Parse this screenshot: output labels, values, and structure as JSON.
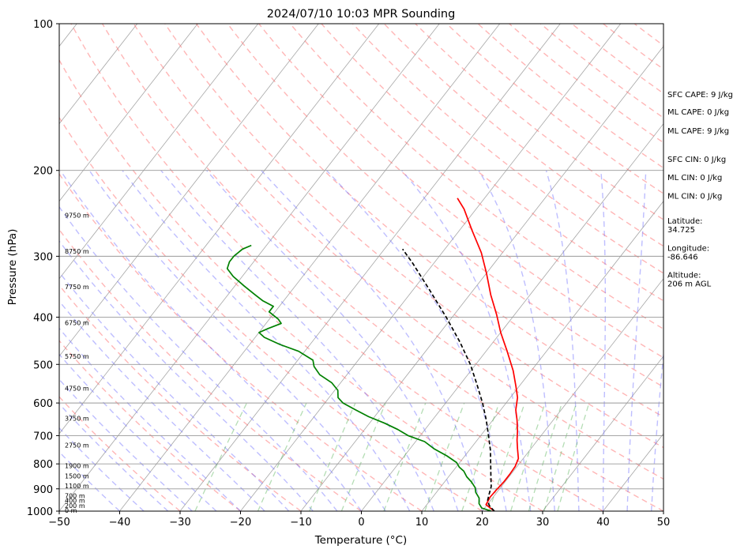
{
  "chart_data": {
    "type": "line",
    "title": "2024/07/10 10:03 MPR Sounding",
    "xlabel": "Temperature (°C)",
    "ylabel": "Pressure (hPa)",
    "xlim": [
      -50,
      50
    ],
    "ylim": [
      1000,
      100
    ],
    "y_scale": "log",
    "x_ticks": [
      -50,
      -40,
      -30,
      -20,
      -10,
      0,
      10,
      20,
      30,
      40,
      50
    ],
    "x_tick_labels": [
      "−50",
      "−40",
      "−30",
      "−20",
      "−10",
      "0",
      "10",
      "20",
      "30",
      "40",
      "50"
    ],
    "y_ticks": [
      1000,
      900,
      800,
      700,
      600,
      500,
      400,
      300,
      200,
      100
    ],
    "y_tick_labels": [
      "1000",
      "900",
      "800",
      "700",
      "600",
      "500",
      "400",
      "300",
      "200",
      "100"
    ],
    "grid": true,
    "height_labels": [
      {
        "p": 1000,
        "text": "0 m"
      },
      {
        "p": 978,
        "text": "200 m"
      },
      {
        "p": 955,
        "text": "400 m"
      },
      {
        "p": 933,
        "text": "700 m"
      },
      {
        "p": 890,
        "text": "1100 m"
      },
      {
        "p": 850,
        "text": "1500 m"
      },
      {
        "p": 810,
        "text": "1900 m"
      },
      {
        "p": 735,
        "text": "2750 m"
      },
      {
        "p": 648,
        "text": "3750 m"
      },
      {
        "p": 562,
        "text": "4750 m"
      },
      {
        "p": 483,
        "text": "5750 m"
      },
      {
        "p": 412,
        "text": "6750 m"
      },
      {
        "p": 348,
        "text": "7750 m"
      },
      {
        "p": 294,
        "text": "8750 m"
      },
      {
        "p": 248,
        "text": "9750 m"
      }
    ],
    "stats": [
      {
        "text": "SFC CAPE: 9 J/kg",
        "p": 140
      },
      {
        "text": "ML CAPE: 0 J/kg",
        "p": 152
      },
      {
        "text": "ML CAPE: 9 J/kg",
        "p": 166
      },
      {
        "text": "SFC CIN: 0 J/kg",
        "p": 190
      },
      {
        "text": "ML CIN: 0 J/kg",
        "p": 207
      },
      {
        "text": "ML CIN: 0 J/kg",
        "p": 226
      },
      {
        "text": "Latitude:",
        "p": 254
      },
      {
        "text": "34.725",
        "p": 265
      },
      {
        "text": "Longitude:",
        "p": 289
      },
      {
        "text": "-86.646",
        "p": 301
      },
      {
        "text": "Altitude:",
        "p": 328
      },
      {
        "text": "206 m AGL",
        "p": 342
      }
    ],
    "series": [
      {
        "name": "",
        "color": "#ff0000",
        "style": "solid",
        "points": [
          [
            22.0,
            1000
          ],
          [
            19.8,
            970
          ],
          [
            19.5,
            935
          ],
          [
            19.6,
            905
          ],
          [
            19.8,
            870
          ],
          [
            19.8,
            840
          ],
          [
            19.7,
            810
          ],
          [
            19.2,
            780
          ],
          [
            17.8,
            745
          ],
          [
            16.6,
            715
          ],
          [
            15.5,
            685
          ],
          [
            14.0,
            650
          ],
          [
            12.5,
            620
          ],
          [
            11.2,
            585
          ],
          [
            9.5,
            555
          ],
          [
            7.0,
            515
          ],
          [
            3.5,
            470
          ],
          [
            0.0,
            430
          ],
          [
            -3.0,
            395
          ],
          [
            -6.5,
            360
          ],
          [
            -10.0,
            325
          ],
          [
            -13.5,
            295
          ],
          [
            -18.0,
            265
          ],
          [
            -22.0,
            240
          ],
          [
            -24.5,
            228
          ]
        ]
      },
      {
        "name": "",
        "color": "#008000",
        "style": "solid",
        "points": [
          [
            21.5,
            1000
          ],
          [
            19.5,
            985
          ],
          [
            18.5,
            965
          ],
          [
            17.8,
            940
          ],
          [
            16.5,
            915
          ],
          [
            15.8,
            895
          ],
          [
            14.5,
            872
          ],
          [
            13.0,
            850
          ],
          [
            11.8,
            828
          ],
          [
            10.5,
            812
          ],
          [
            9.5,
            795
          ],
          [
            7.0,
            770
          ],
          [
            4.0,
            745
          ],
          [
            1.5,
            720
          ],
          [
            -2.0,
            700
          ],
          [
            -4.5,
            680
          ],
          [
            -7.5,
            660
          ],
          [
            -11.0,
            640
          ],
          [
            -14.0,
            620
          ],
          [
            -17.0,
            600
          ],
          [
            -18.5,
            585
          ],
          [
            -19.5,
            565
          ],
          [
            -21.5,
            545
          ],
          [
            -24.5,
            525
          ],
          [
            -26.5,
            505
          ],
          [
            -27.5,
            490
          ],
          [
            -31.0,
            470
          ],
          [
            -35.0,
            455
          ],
          [
            -38.5,
            440
          ],
          [
            -40.0,
            430
          ],
          [
            -39.0,
            422
          ],
          [
            -37.5,
            412
          ],
          [
            -38.5,
            404
          ],
          [
            -41.0,
            390
          ],
          [
            -41.0,
            380
          ],
          [
            -43.5,
            370
          ],
          [
            -45.5,
            360
          ],
          [
            -48.5,
            345
          ],
          [
            -51.5,
            330
          ],
          [
            -53.5,
            318
          ],
          [
            -54.0,
            308
          ],
          [
            -54.0,
            300
          ],
          [
            -53.5,
            290
          ],
          [
            -52.5,
            285
          ]
        ]
      },
      {
        "name": "",
        "color": "#000000",
        "style": "dashed",
        "points": [
          [
            22.0,
            1000
          ],
          [
            20.5,
            975
          ],
          [
            19.5,
            950
          ],
          [
            19.0,
            925
          ],
          [
            18.6,
            905
          ],
          [
            18.3,
            890
          ],
          [
            17.0,
            850
          ],
          [
            15.3,
            800
          ],
          [
            13.5,
            750
          ],
          [
            11.3,
            700
          ],
          [
            8.9,
            650
          ],
          [
            6.1,
            600
          ],
          [
            2.8,
            550
          ],
          [
            -0.9,
            500
          ],
          [
            -5.5,
            450
          ],
          [
            -11.0,
            400
          ],
          [
            -17.5,
            350
          ],
          [
            -23.5,
            310
          ],
          [
            -27.0,
            290
          ]
        ]
      }
    ],
    "background_lines": [
      {
        "name": "isotherms",
        "color": "#888888",
        "style": "solid",
        "spacing_c": 10
      },
      {
        "name": "dry-adiabats",
        "color": "#ff6e6e",
        "style": "dashed"
      },
      {
        "name": "moist-adiabats",
        "color": "#6e6eff",
        "style": "dashed"
      },
      {
        "name": "mixing-ratio-lines",
        "color": "#44aa44",
        "style": "dashed"
      }
    ]
  }
}
